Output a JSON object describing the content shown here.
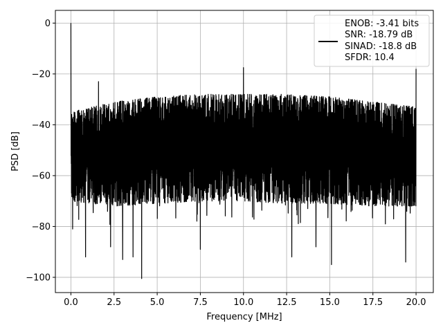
{
  "chart_data": {
    "type": "line",
    "xlabel": "Frequency [MHz]",
    "ylabel": "PSD [dB]",
    "xlim": [
      -0.9,
      21.0
    ],
    "ylim": [
      -106,
      5
    ],
    "xticks": [
      0.0,
      2.5,
      5.0,
      7.5,
      10.0,
      12.5,
      15.0,
      17.5,
      20.0
    ],
    "xtick_labels": [
      "0.0",
      "2.5",
      "5.0",
      "7.5",
      "10.0",
      "12.5",
      "15.0",
      "17.5",
      "20.0"
    ],
    "yticks": [
      0,
      -20,
      -40,
      -60,
      -80,
      -100
    ],
    "ytick_labels": [
      "0",
      "−20",
      "−40",
      "−60",
      "−80",
      "−100"
    ],
    "grid": true,
    "legend_position": "top-right",
    "series": [
      {
        "color": "#000000",
        "description": "noisy spectrum: upper envelope about -35 dB near 0 rising to about -28 dB mid-band, lower envelope about -70 dB with spikes to about -100 dB",
        "noise_upper_envelope": {
          "x": [
            0.0,
            2.5,
            5.0,
            7.5,
            10.0,
            12.5,
            15.0,
            17.5,
            20.0
          ],
          "y": [
            -35,
            -31,
            -29,
            -28,
            -28,
            -28,
            -29,
            -31,
            -33
          ]
        },
        "noise_lower_envelope": {
          "x": [
            0.0,
            2.5,
            5.0,
            7.5,
            10.0,
            12.5,
            15.0,
            17.5,
            20.0
          ],
          "y": [
            -70,
            -72,
            -71,
            -70,
            -70,
            -71,
            -71,
            -72,
            -72
          ]
        },
        "peaks": [
          {
            "x": 0.0,
            "y": 0
          },
          {
            "x": 1.6,
            "y": -23
          },
          {
            "x": 10.0,
            "y": -17.5
          },
          {
            "x": 20.0,
            "y": -18
          }
        ],
        "deep_minima": [
          {
            "x": 0.1,
            "y": -81
          },
          {
            "x": 0.85,
            "y": -92
          },
          {
            "x": 2.3,
            "y": -88
          },
          {
            "x": 3.0,
            "y": -93
          },
          {
            "x": 3.6,
            "y": -92
          },
          {
            "x": 4.1,
            "y": -100.5
          },
          {
            "x": 7.5,
            "y": -89
          },
          {
            "x": 12.8,
            "y": -92
          },
          {
            "x": 14.2,
            "y": -88
          },
          {
            "x": 15.1,
            "y": -95
          },
          {
            "x": 19.4,
            "y": -94
          }
        ]
      }
    ]
  },
  "legend": {
    "entries": [
      "ENOB: -3.41 bits",
      "SNR: -18.79 dB",
      "SINAD: -18.8 dB",
      "SFDR: 10.4"
    ]
  }
}
